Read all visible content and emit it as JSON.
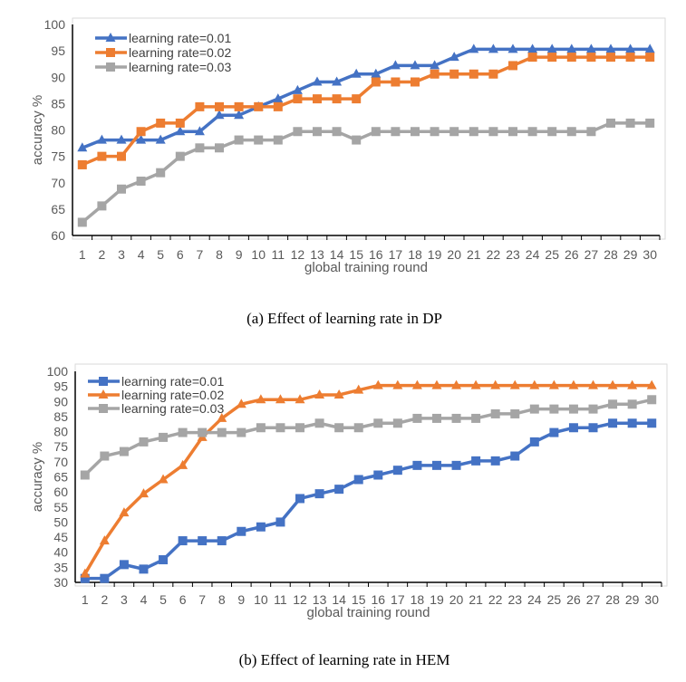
{
  "colors": {
    "blue": "#4472C4",
    "orange": "#ED7D31",
    "gray": "#A5A5A5"
  },
  "chart_data": [
    {
      "type": "line",
      "title": "",
      "caption": "(a)  Effect of learning rate in DP",
      "xlabel": "global training round",
      "ylabel": "accuracy %",
      "ylim": [
        60,
        100
      ],
      "yticks": [
        60,
        65,
        70,
        75,
        80,
        85,
        90,
        95,
        100
      ],
      "categories": [
        1,
        2,
        3,
        4,
        5,
        6,
        7,
        8,
        9,
        10,
        11,
        12,
        13,
        14,
        15,
        16,
        17,
        18,
        19,
        20,
        21,
        22,
        23,
        24,
        25,
        26,
        27,
        28,
        29,
        30
      ],
      "legend_position": "top-left",
      "series": [
        {
          "name": "learning rate=0.01",
          "color": "blue",
          "marker": "triangle",
          "values": [
            76.6,
            78.1,
            78.1,
            78.1,
            78.1,
            79.7,
            79.7,
            82.8,
            82.8,
            84.4,
            85.9,
            87.5,
            89.1,
            89.1,
            90.6,
            90.6,
            92.2,
            92.2,
            92.2,
            93.8,
            95.3,
            95.3,
            95.3,
            95.3,
            95.3,
            95.3,
            95.3,
            95.3,
            95.3,
            95.3
          ]
        },
        {
          "name": "learning rate=0.02",
          "color": "orange",
          "marker": "square",
          "values": [
            73.4,
            75.0,
            75.0,
            79.7,
            81.3,
            81.3,
            84.4,
            84.4,
            84.4,
            84.4,
            84.4,
            85.9,
            85.9,
            85.9,
            85.9,
            89.1,
            89.1,
            89.1,
            90.6,
            90.6,
            90.6,
            90.6,
            92.2,
            93.8,
            93.8,
            93.8,
            93.8,
            93.8,
            93.8,
            93.8
          ]
        },
        {
          "name": "learning rate=0.03",
          "color": "gray",
          "marker": "square",
          "values": [
            62.5,
            65.6,
            68.8,
            70.3,
            71.9,
            75.0,
            76.6,
            76.6,
            78.1,
            78.1,
            78.1,
            79.7,
            79.7,
            79.7,
            78.1,
            79.7,
            79.7,
            79.7,
            79.7,
            79.7,
            79.7,
            79.7,
            79.7,
            79.7,
            79.7,
            79.7,
            79.7,
            81.3,
            81.3,
            81.3
          ]
        }
      ]
    },
    {
      "type": "line",
      "title": "",
      "caption": "(b) Effect of learning rate in HEM",
      "xlabel": "global training  round",
      "ylabel": "accuracy %",
      "ylim": [
        30,
        100
      ],
      "yticks": [
        30,
        35,
        40,
        45,
        50,
        55,
        60,
        65,
        70,
        75,
        80,
        85,
        90,
        95,
        100
      ],
      "categories": [
        1,
        2,
        3,
        4,
        5,
        6,
        7,
        8,
        9,
        10,
        11,
        12,
        13,
        14,
        15,
        16,
        17,
        18,
        19,
        20,
        21,
        22,
        23,
        24,
        25,
        26,
        27,
        28,
        29,
        30
      ],
      "legend_position": "top-left",
      "series": [
        {
          "name": "learning rate=0.01",
          "color": "blue",
          "marker": "square",
          "values": [
            31.3,
            31.3,
            35.9,
            34.4,
            37.5,
            43.8,
            43.8,
            43.8,
            46.9,
            48.4,
            50.0,
            57.8,
            59.4,
            60.9,
            64.1,
            65.6,
            67.2,
            68.8,
            68.8,
            68.8,
            70.3,
            70.3,
            71.9,
            76.6,
            79.7,
            81.3,
            81.3,
            82.8,
            82.8,
            82.8
          ]
        },
        {
          "name": "learning rate=0.02",
          "color": "orange",
          "marker": "triangle",
          "values": [
            32.8,
            43.8,
            53.1,
            59.4,
            64.1,
            68.8,
            78.1,
            84.4,
            89.1,
            90.6,
            90.6,
            90.6,
            92.2,
            92.2,
            93.8,
            95.3,
            95.3,
            95.3,
            95.3,
            95.3,
            95.3,
            95.3,
            95.3,
            95.3,
            95.3,
            95.3,
            95.3,
            95.3,
            95.3,
            95.3
          ]
        },
        {
          "name": "learning rate=0.03",
          "color": "gray",
          "marker": "square",
          "values": [
            65.6,
            71.9,
            73.4,
            76.6,
            78.1,
            79.7,
            79.7,
            79.7,
            79.7,
            81.3,
            81.3,
            81.3,
            82.8,
            81.3,
            81.3,
            82.8,
            82.8,
            84.4,
            84.4,
            84.4,
            84.4,
            85.9,
            85.9,
            87.5,
            87.5,
            87.5,
            87.5,
            89.1,
            89.1,
            90.6
          ]
        }
      ]
    }
  ]
}
